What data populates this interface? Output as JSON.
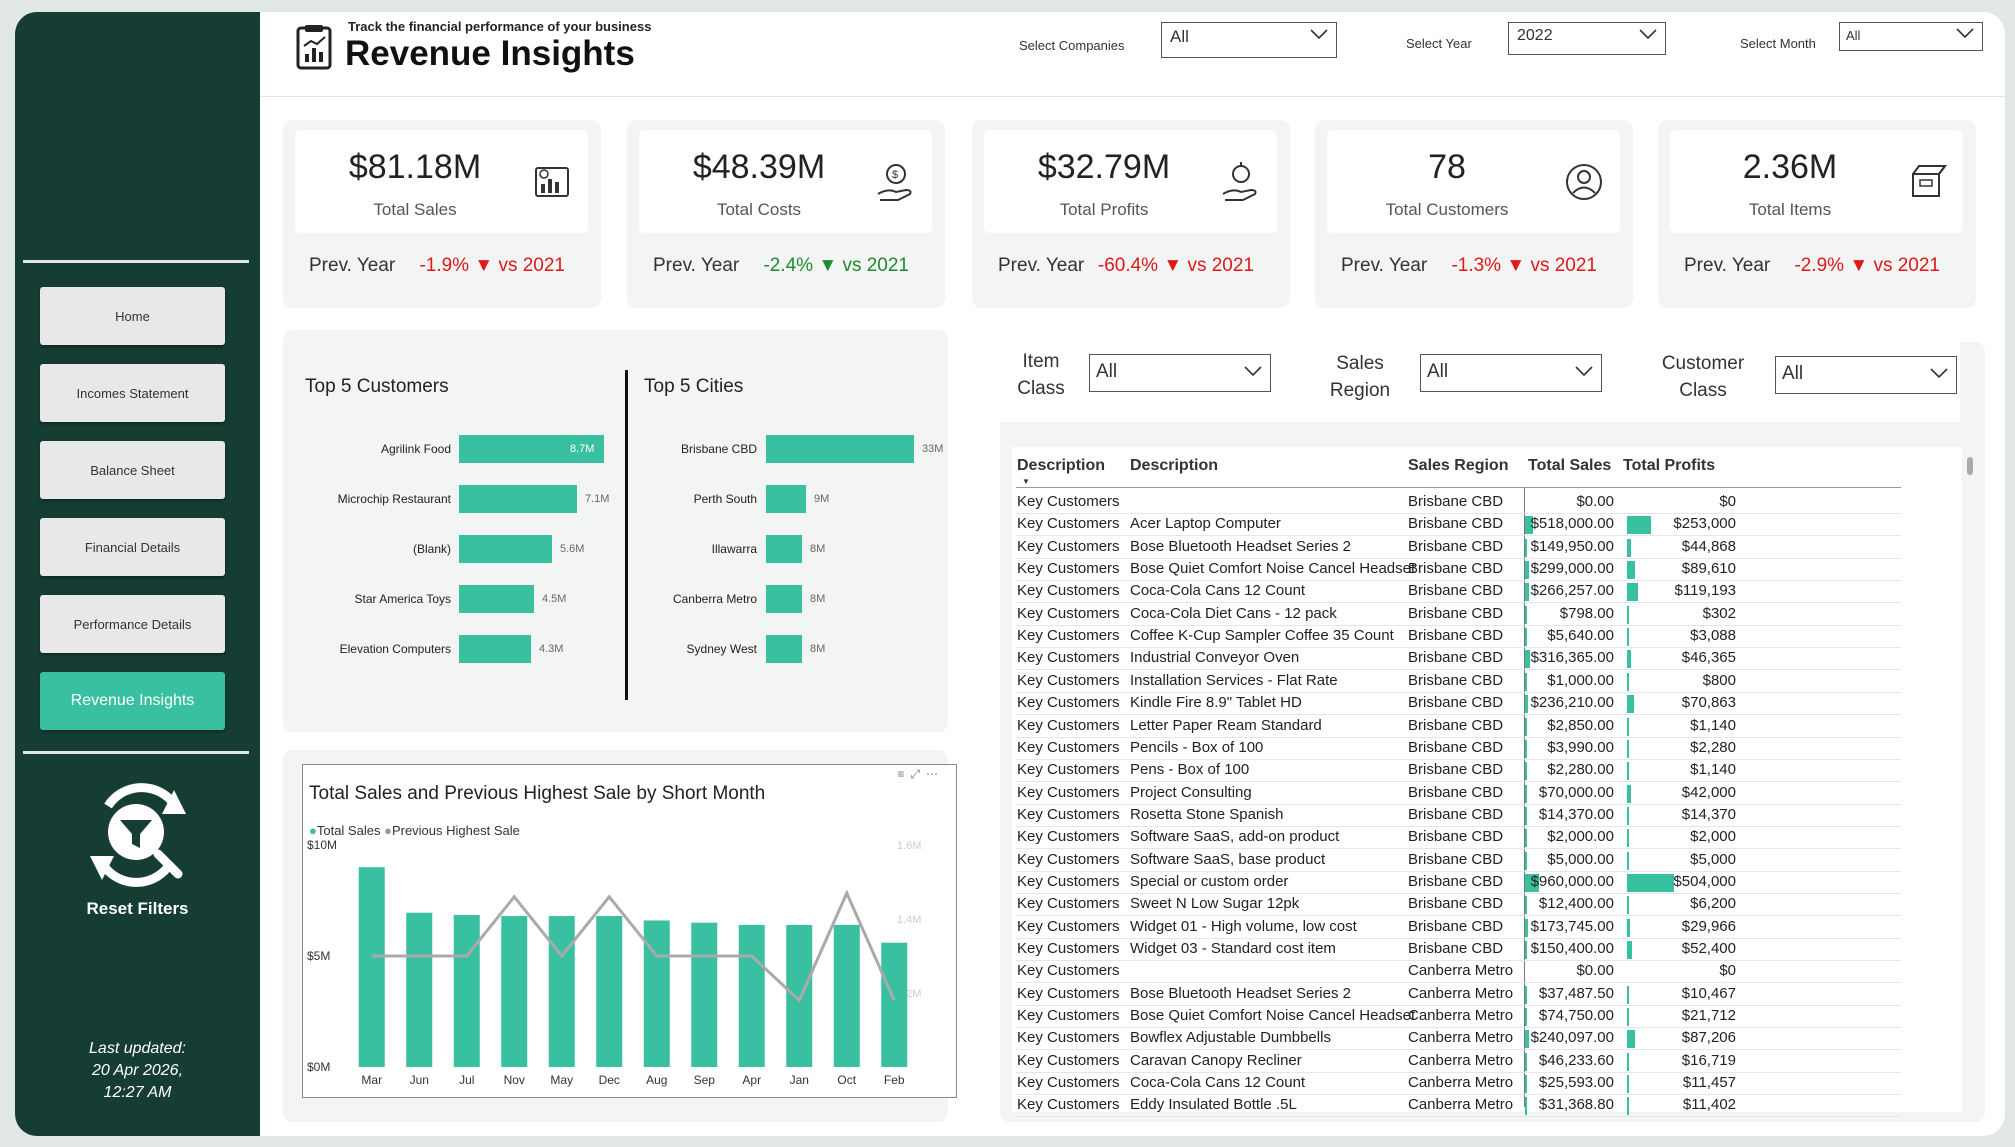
{
  "header": {
    "tagline": "Track the financial performance of your business",
    "title": "Revenue Insights",
    "filters": [
      {
        "label": "Select Companies",
        "value": "All"
      },
      {
        "label": "Select Year",
        "value": "2022"
      },
      {
        "label": "Select Month",
        "value": "All"
      }
    ]
  },
  "nav": {
    "items": [
      "Home",
      "Incomes Statement",
      "Balance Sheet",
      "Financial Details",
      "Performance Details",
      "Revenue Insights"
    ],
    "active": "Revenue Insights",
    "reset_label": "Reset Filters",
    "updated_lines": [
      "Last updated:",
      "20 Apr 2026,",
      "12:27 AM"
    ]
  },
  "kpis": [
    {
      "value": "$81.18M",
      "label": "Total Sales",
      "prev": "Prev. Year",
      "delta": "-1.9%",
      "arrow": "▼",
      "vs": "vs 2021",
      "trend": "neg",
      "icon": "sales-chart-icon"
    },
    {
      "value": "$48.39M",
      "label": "Total Costs",
      "prev": "Prev. Year",
      "delta": "-2.4%",
      "arrow": "▼",
      "vs": "vs 2021",
      "trend": "pos",
      "icon": "cost-hand-icon"
    },
    {
      "value": "$32.79M",
      "label": "Total Profits",
      "prev": "Prev. Year",
      "delta": "-60.4%",
      "arrow": "▼",
      "vs": "vs 2021",
      "trend": "neg",
      "icon": "profit-hand-icon"
    },
    {
      "value": "78",
      "label": "Total Customers",
      "prev": "Prev. Year",
      "delta": "-1.3%",
      "arrow": "▼",
      "vs": "vs 2021",
      "trend": "neg",
      "icon": "customer-icon"
    },
    {
      "value": "2.36M",
      "label": "Total Items",
      "prev": "Prev. Year",
      "delta": "-2.9%",
      "arrow": "▼",
      "vs": "vs 2021",
      "trend": "neg",
      "icon": "items-box-icon"
    }
  ],
  "top_customers": {
    "title": "Top 5 Customers",
    "items": [
      {
        "name": "Agrilink Food",
        "value": 8.7,
        "label": "8.7M"
      },
      {
        "name": "Microchip Restaurant",
        "value": 7.1,
        "label": "7.1M"
      },
      {
        "name": "(Blank)",
        "value": 5.6,
        "label": "5.6M"
      },
      {
        "name": "Star America Toys",
        "value": 4.5,
        "label": "4.5M"
      },
      {
        "name": "Elevation Computers",
        "value": 4.3,
        "label": "4.3M"
      }
    ]
  },
  "top_cities": {
    "title": "Top 5 Cities",
    "items": [
      {
        "name": "Brisbane CBD",
        "value": 33,
        "label": "33M"
      },
      {
        "name": "Perth South",
        "value": 9,
        "label": "9M"
      },
      {
        "name": "Illawarra",
        "value": 8,
        "label": "8M"
      },
      {
        "name": "Canberra Metro",
        "value": 8,
        "label": "8M"
      },
      {
        "name": "Sydney West",
        "value": 8,
        "label": "8M"
      }
    ]
  },
  "chart_data": {
    "type": "bar",
    "title": "Total Sales and Previous Highest Sale by Short Month",
    "legend": [
      "Total Sales",
      "Previous Highest Sale"
    ],
    "categories": [
      "Mar",
      "Jun",
      "Jul",
      "Nov",
      "May",
      "Dec",
      "Aug",
      "Sep",
      "Apr",
      "Jan",
      "Oct",
      "Feb"
    ],
    "series": [
      {
        "name": "Total Sales",
        "values": [
          9.0,
          6.95,
          6.85,
          6.8,
          6.8,
          6.8,
          6.6,
          6.5,
          6.4,
          6.4,
          6.4,
          5.6
        ]
      },
      {
        "name": "Previous Highest Sale",
        "values": [
          1.3,
          1.3,
          1.3,
          1.46,
          1.3,
          1.46,
          1.3,
          1.3,
          1.3,
          1.18,
          1.47,
          1.18
        ]
      }
    ],
    "ylim": [
      0,
      10
    ],
    "y_ticks": [
      "$0M",
      "$5M",
      "$10M"
    ],
    "y2lim": [
      1.0,
      1.6
    ],
    "y2_ticks": [
      "1.2M",
      "1.4M",
      "1.6M"
    ],
    "legend_position": "top-left"
  },
  "table_filters": [
    {
      "label": [
        "Item",
        "Class"
      ],
      "value": "All"
    },
    {
      "label": [
        "Sales",
        "Region"
      ],
      "value": "All"
    },
    {
      "label": [
        "Customer",
        "Class"
      ],
      "value": "All"
    }
  ],
  "table": {
    "headers": [
      "Description",
      "Description",
      "Sales Region",
      "Total Sales",
      "Total Profits"
    ],
    "rows": [
      [
        "Key Customers",
        "",
        "Brisbane CBD",
        "$0.00",
        "$0",
        0,
        0
      ],
      [
        "Key Customers",
        "Acer Laptop Computer",
        "Brisbane CBD",
        "$518,000.00",
        "$253,000",
        518000,
        253000
      ],
      [
        "Key Customers",
        "Bose Bluetooth Headset Series 2",
        "Brisbane CBD",
        "$149,950.00",
        "$44,868",
        149950,
        44868
      ],
      [
        "Key Customers",
        "Bose Quiet Comfort Noise Cancel Headset",
        "Brisbane CBD",
        "$299,000.00",
        "$89,610",
        299000,
        89610
      ],
      [
        "Key Customers",
        "Coca-Cola Cans 12 Count",
        "Brisbane CBD",
        "$266,257.00",
        "$119,193",
        266257,
        119193
      ],
      [
        "Key Customers",
        "Coca-Cola Diet Cans - 12 pack",
        "Brisbane CBD",
        "$798.00",
        "$302",
        798,
        302
      ],
      [
        "Key Customers",
        "Coffee K-Cup Sampler Coffee 35 Count",
        "Brisbane CBD",
        "$5,640.00",
        "$3,088",
        5640,
        3088
      ],
      [
        "Key Customers",
        "Industrial Conveyor Oven",
        "Brisbane CBD",
        "$316,365.00",
        "$46,365",
        316365,
        46365
      ],
      [
        "Key Customers",
        "Installation Services - Flat Rate",
        "Brisbane CBD",
        "$1,000.00",
        "$800",
        1000,
        800
      ],
      [
        "Key Customers",
        "Kindle Fire 8.9\" Tablet HD",
        "Brisbane CBD",
        "$236,210.00",
        "$70,863",
        236210,
        70863
      ],
      [
        "Key Customers",
        "Letter Paper Ream Standard",
        "Brisbane CBD",
        "$2,850.00",
        "$1,140",
        2850,
        1140
      ],
      [
        "Key Customers",
        "Pencils - Box of 100",
        "Brisbane CBD",
        "$3,990.00",
        "$2,280",
        3990,
        2280
      ],
      [
        "Key Customers",
        "Pens - Box of 100",
        "Brisbane CBD",
        "$2,280.00",
        "$1,140",
        2280,
        1140
      ],
      [
        "Key Customers",
        "Project Consulting",
        "Brisbane CBD",
        "$70,000.00",
        "$42,000",
        70000,
        42000
      ],
      [
        "Key Customers",
        "Rosetta Stone Spanish",
        "Brisbane CBD",
        "$14,370.00",
        "$14,370",
        14370,
        14370
      ],
      [
        "Key Customers",
        "Software SaaS, add-on product",
        "Brisbane CBD",
        "$2,000.00",
        "$2,000",
        2000,
        2000
      ],
      [
        "Key Customers",
        "Software SaaS, base product",
        "Brisbane CBD",
        "$5,000.00",
        "$5,000",
        5000,
        5000
      ],
      [
        "Key Customers",
        "Special or custom order",
        "Brisbane CBD",
        "$960,000.00",
        "$504,000",
        960000,
        504000
      ],
      [
        "Key Customers",
        "Sweet N Low Sugar 12pk",
        "Brisbane CBD",
        "$12,400.00",
        "$6,200",
        12400,
        6200
      ],
      [
        "Key Customers",
        "Widget 01 - High volume, low cost",
        "Brisbane CBD",
        "$173,745.00",
        "$29,966",
        173745,
        29966
      ],
      [
        "Key Customers",
        "Widget 03 - Standard cost item",
        "Brisbane CBD",
        "$150,400.00",
        "$52,400",
        150400,
        52400
      ],
      [
        "Key Customers",
        "",
        "Canberra Metro",
        "$0.00",
        "$0",
        0,
        0
      ],
      [
        "Key Customers",
        "Bose Bluetooth Headset Series 2",
        "Canberra Metro",
        "$37,487.50",
        "$10,467",
        37487.5,
        10467
      ],
      [
        "Key Customers",
        "Bose Quiet Comfort Noise Cancel Headset",
        "Canberra Metro",
        "$74,750.00",
        "$21,712",
        74750,
        21712
      ],
      [
        "Key Customers",
        "Bowflex Adjustable Dumbbells",
        "Canberra Metro",
        "$240,097.00",
        "$87,206",
        240097,
        87206
      ],
      [
        "Key Customers",
        "Caravan Canopy Recliner",
        "Canberra Metro",
        "$46,233.60",
        "$16,719",
        46233.6,
        16719
      ],
      [
        "Key Customers",
        "Coca-Cola Cans 12 Count",
        "Canberra Metro",
        "$25,593.00",
        "$11,457",
        25593,
        11457
      ],
      [
        "Key Customers",
        "Eddy Insulated Bottle .5L",
        "Canberra Metro",
        "$31,368.80",
        "$11,402",
        31368.8,
        11402
      ]
    ]
  },
  "colors": {
    "accent": "#39c0a0",
    "sidebar": "#153d33",
    "negative": "#e01818",
    "positive": "#1f8a2f"
  }
}
